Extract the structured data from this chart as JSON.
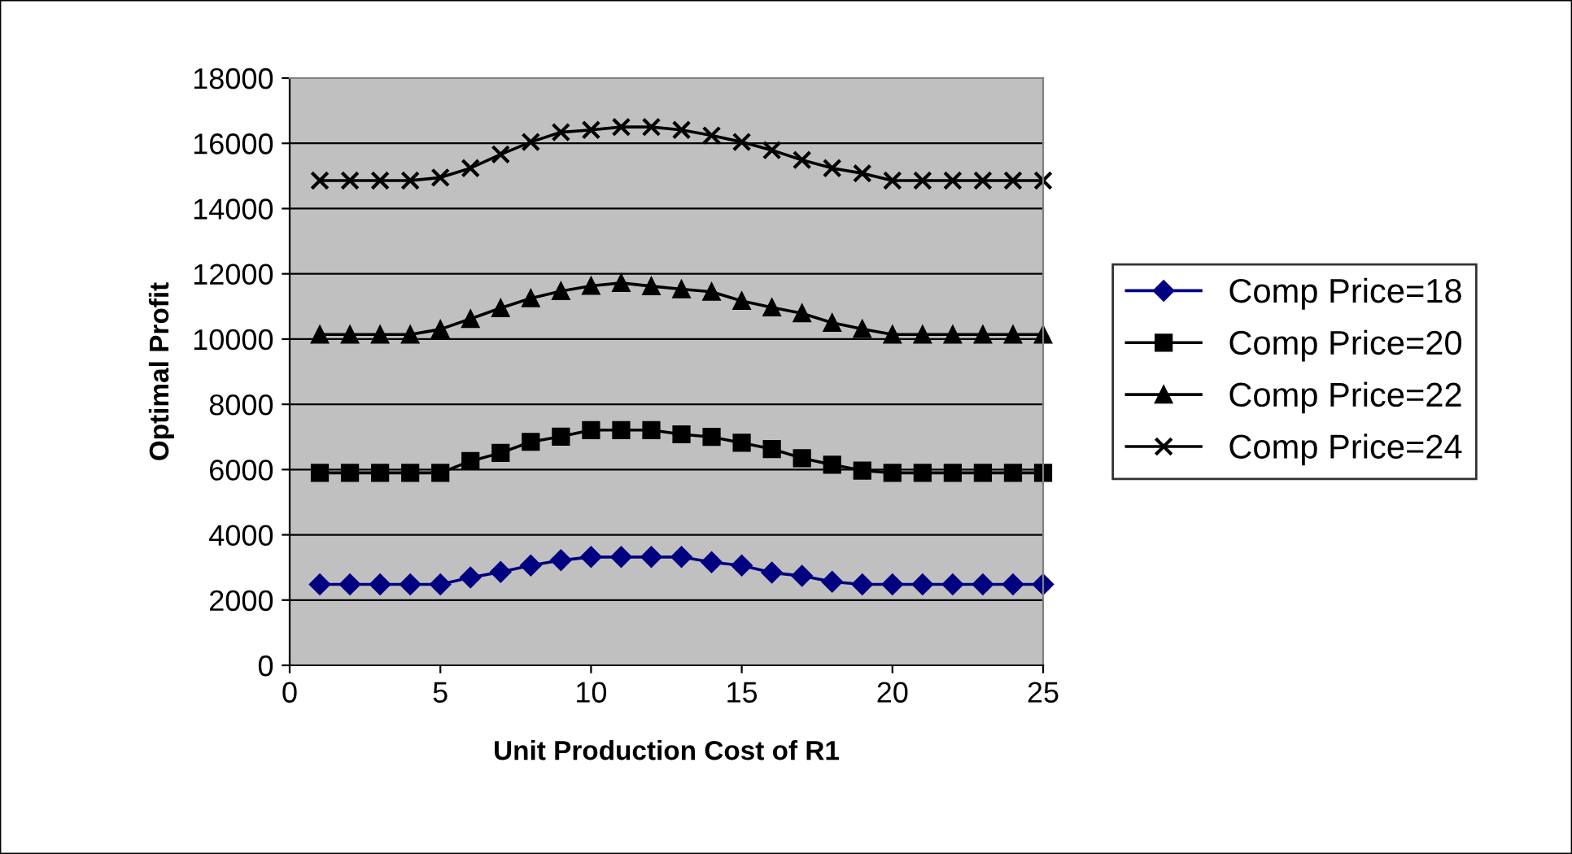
{
  "chart_data": {
    "type": "line",
    "xlabel": "Unit Production Cost of R1",
    "ylabel": "Optimal Profit",
    "x": [
      1,
      2,
      3,
      4,
      5,
      6,
      7,
      8,
      9,
      10,
      11,
      12,
      13,
      14,
      15,
      16,
      17,
      18,
      19,
      20,
      21,
      22,
      23,
      24,
      25
    ],
    "xlim": [
      0,
      25
    ],
    "xticks": [
      0,
      5,
      10,
      15,
      20,
      25
    ],
    "ylim": [
      0,
      18000
    ],
    "yticks": [
      0,
      2000,
      4000,
      6000,
      8000,
      10000,
      12000,
      14000,
      16000,
      18000
    ],
    "grid": "y",
    "legend": "right",
    "series": [
      {
        "name": "Comp Price=18",
        "color": "#000080",
        "marker": "diamond",
        "values": [
          2480,
          2480,
          2480,
          2480,
          2480,
          2690,
          2860,
          3060,
          3220,
          3320,
          3320,
          3320,
          3320,
          3160,
          3060,
          2840,
          2740,
          2560,
          2480,
          2480,
          2480,
          2480,
          2480,
          2480,
          2480
        ]
      },
      {
        "name": "Comp Price=20",
        "color": "#000000",
        "marker": "square",
        "values": [
          5900,
          5900,
          5900,
          5900,
          5900,
          6260,
          6510,
          6850,
          7010,
          7210,
          7210,
          7210,
          7080,
          7000,
          6820,
          6630,
          6350,
          6150,
          5970,
          5900,
          5900,
          5900,
          5900,
          5900,
          5900
        ]
      },
      {
        "name": "Comp Price=22",
        "color": "#000000",
        "marker": "triangle",
        "values": [
          10140,
          10140,
          10140,
          10140,
          10300,
          10620,
          10950,
          11250,
          11470,
          11630,
          11720,
          11620,
          11530,
          11450,
          11170,
          10970,
          10790,
          10500,
          10310,
          10140,
          10140,
          10140,
          10140,
          10140,
          10140
        ]
      },
      {
        "name": "Comp Price=24",
        "color": "#000000",
        "marker": "cross",
        "values": [
          14860,
          14860,
          14860,
          14860,
          14950,
          15240,
          15660,
          16040,
          16340,
          16410,
          16500,
          16500,
          16410,
          16240,
          16040,
          15790,
          15490,
          15240,
          15080,
          14860,
          14860,
          14860,
          14860,
          14860,
          14860
        ]
      }
    ]
  }
}
